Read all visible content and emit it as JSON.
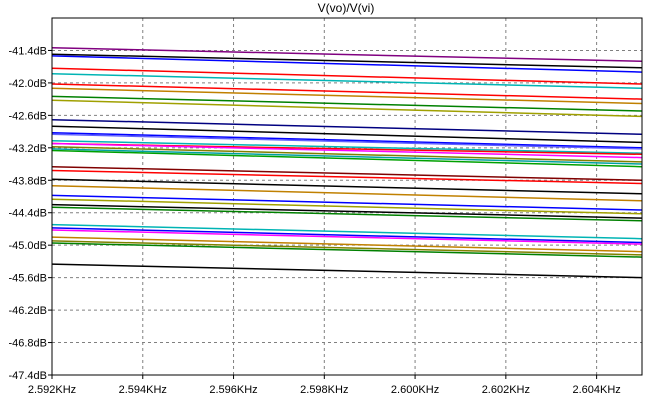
{
  "chart_data": {
    "type": "line",
    "title": "V(vo)/V(vi)",
    "xlabel": "",
    "ylabel": "",
    "xlim": [
      2.592,
      2.605
    ],
    "ylim": [
      -47.4,
      -40.8
    ],
    "x_ticks": [
      2.592,
      2.594,
      2.596,
      2.598,
      2.6,
      2.602,
      2.604
    ],
    "x_tick_labels": [
      "2.592KHz",
      "2.594KHz",
      "2.596KHz",
      "2.598KHz",
      "2.600KHz",
      "2.602KHz",
      "2.604KHz"
    ],
    "y_ticks": [
      -41.4,
      -42.0,
      -42.6,
      -43.2,
      -43.8,
      -44.4,
      -45.0,
      -45.6,
      -46.2,
      -46.8,
      -47.4
    ],
    "y_tick_labels": [
      "-41.4dB",
      "-42.0dB",
      "-42.6dB",
      "-43.2dB",
      "-43.8dB",
      "-44.4dB",
      "-45.0dB",
      "-45.6dB",
      "-46.2dB",
      "-46.8dB",
      "-47.4dB"
    ],
    "grid": true,
    "grid_style": "dashed",
    "x": [
      2.592,
      2.605
    ],
    "series": [
      {
        "color": "#800080",
        "values": [
          -41.35,
          -41.6
        ]
      },
      {
        "color": "#000000",
        "values": [
          -41.47,
          -41.72
        ]
      },
      {
        "color": "#0000ff",
        "values": [
          -41.5,
          -41.8
        ]
      },
      {
        "color": "#ff0000",
        "values": [
          -41.73,
          -42.02
        ]
      },
      {
        "color": "#00b4b4",
        "values": [
          -41.83,
          -42.1
        ]
      },
      {
        "color": "#ff0000",
        "values": [
          -42.02,
          -42.3
        ]
      },
      {
        "color": "#c08000",
        "values": [
          -42.1,
          -42.38
        ]
      },
      {
        "color": "#008000",
        "values": [
          -42.25,
          -42.52
        ]
      },
      {
        "color": "#a0a000",
        "values": [
          -42.32,
          -42.62
        ]
      },
      {
        "color": "#000080",
        "values": [
          -42.68,
          -42.95
        ]
      },
      {
        "color": "#000000",
        "values": [
          -42.8,
          -43.1
        ]
      },
      {
        "color": "#0000ff",
        "values": [
          -42.92,
          -43.2
        ]
      },
      {
        "color": "#6060ff",
        "values": [
          -42.95,
          -43.22
        ]
      },
      {
        "color": "#00b4b4",
        "values": [
          -43.07,
          -43.3
        ]
      },
      {
        "color": "#ff0000",
        "values": [
          -43.12,
          -43.32
        ]
      },
      {
        "color": "#ff00ff",
        "values": [
          -43.12,
          -43.38
        ]
      },
      {
        "color": "#808000",
        "values": [
          -43.18,
          -43.46
        ]
      },
      {
        "color": "#00a0a0",
        "values": [
          -43.22,
          -43.5
        ]
      },
      {
        "color": "#00a000",
        "values": [
          -43.25,
          -43.55
        ]
      },
      {
        "color": "#800000",
        "values": [
          -43.55,
          -43.8
        ]
      },
      {
        "color": "#ff0000",
        "values": [
          -43.62,
          -43.86
        ]
      },
      {
        "color": "#000000",
        "values": [
          -43.78,
          -44.05
        ]
      },
      {
        "color": "#c08000",
        "values": [
          -43.9,
          -44.18
        ]
      },
      {
        "color": "#0000ff",
        "values": [
          -44.08,
          -44.35
        ]
      },
      {
        "color": "#a0a000",
        "values": [
          -44.15,
          -44.42
        ]
      },
      {
        "color": "#000000",
        "values": [
          -44.25,
          -44.5
        ]
      },
      {
        "color": "#008000",
        "values": [
          -44.3,
          -44.55
        ]
      },
      {
        "color": "#00b4b4",
        "values": [
          -44.62,
          -44.88
        ]
      },
      {
        "color": "#0000ff",
        "values": [
          -44.68,
          -44.95
        ]
      },
      {
        "color": "#ff00ff",
        "values": [
          -44.72,
          -44.98
        ]
      },
      {
        "color": "#808000",
        "values": [
          -44.92,
          -45.18
        ]
      },
      {
        "color": "#008000",
        "values": [
          -44.96,
          -45.22
        ]
      },
      {
        "color": "#c08000",
        "values": [
          -44.85,
          -45.12
        ]
      },
      {
        "color": "#000000",
        "values": [
          -45.35,
          -45.6
        ]
      }
    ]
  }
}
